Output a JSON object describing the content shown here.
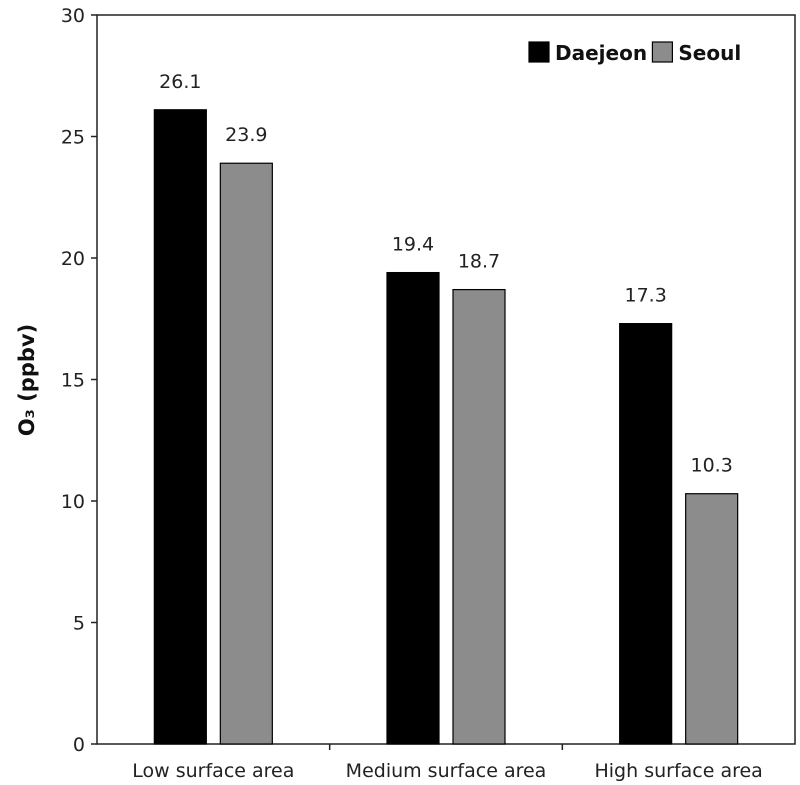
{
  "chart_data": {
    "type": "bar",
    "title": "",
    "xlabel": "",
    "ylabel": "O₃ (ppbv)",
    "categories": [
      "Low surface area",
      "Medium surface area",
      "High surface area"
    ],
    "series": [
      {
        "name": "Daejeon",
        "values": [
          26.1,
          19.4,
          17.3
        ],
        "color": "#000000"
      },
      {
        "name": "Seoul",
        "values": [
          23.9,
          18.7,
          10.3
        ],
        "color": "#8c8c8c"
      }
    ],
    "data_labels": [
      [
        "26.1",
        "19.4",
        "17.3"
      ],
      [
        "23.9",
        "18.7",
        "10.3"
      ]
    ],
    "ylim": [
      0,
      30
    ],
    "yticks": [
      "0",
      "5",
      "10",
      "15",
      "20",
      "25",
      "30"
    ],
    "grid": false,
    "legend_position": "top-right"
  }
}
